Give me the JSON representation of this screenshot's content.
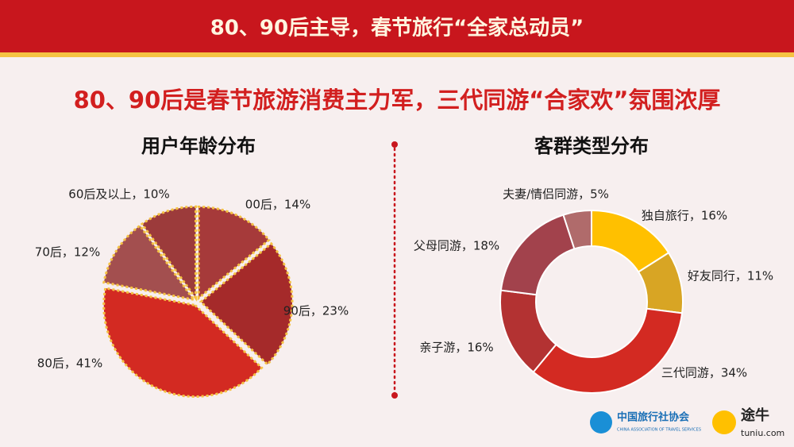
{
  "banner": "80、90后主导，春节旅行“全家总动员”",
  "headline": "80、90后是春节旅游消费主力军，三代同游“合家欢”氛围浓厚",
  "logos": [
    "中国旅行社协会",
    "CHINA ASSOCIATION OF TRAVEL SERVICES",
    "途牛",
    "tuniu.com"
  ],
  "chart_data": [
    {
      "type": "pie",
      "title": "用户年龄分布",
      "values": [
        14,
        23,
        41,
        12,
        10
      ],
      "value_labels": [
        "00后，14%",
        "90后，23%",
        "80后，41%",
        "70后，12%",
        "60后及以上，10%"
      ],
      "colors": [
        "#a63a3a",
        "#a52a2a",
        "#d32a22",
        "#a34f4f",
        "#9c3b3b"
      ]
    },
    {
      "type": "donut",
      "title": "客群类型分布",
      "values": [
        16,
        11,
        34,
        16,
        18,
        5
      ],
      "value_labels": [
        "独自旅行，16%",
        "好友同行，11%",
        "三代同游，34%",
        "亲子游，16%",
        "父母同游，18%",
        "夫妻/情侣同游，5%"
      ],
      "colors": [
        "#ffc000",
        "#d8a524",
        "#d32a22",
        "#b33232",
        "#a2424c",
        "#b06b6b"
      ]
    }
  ]
}
